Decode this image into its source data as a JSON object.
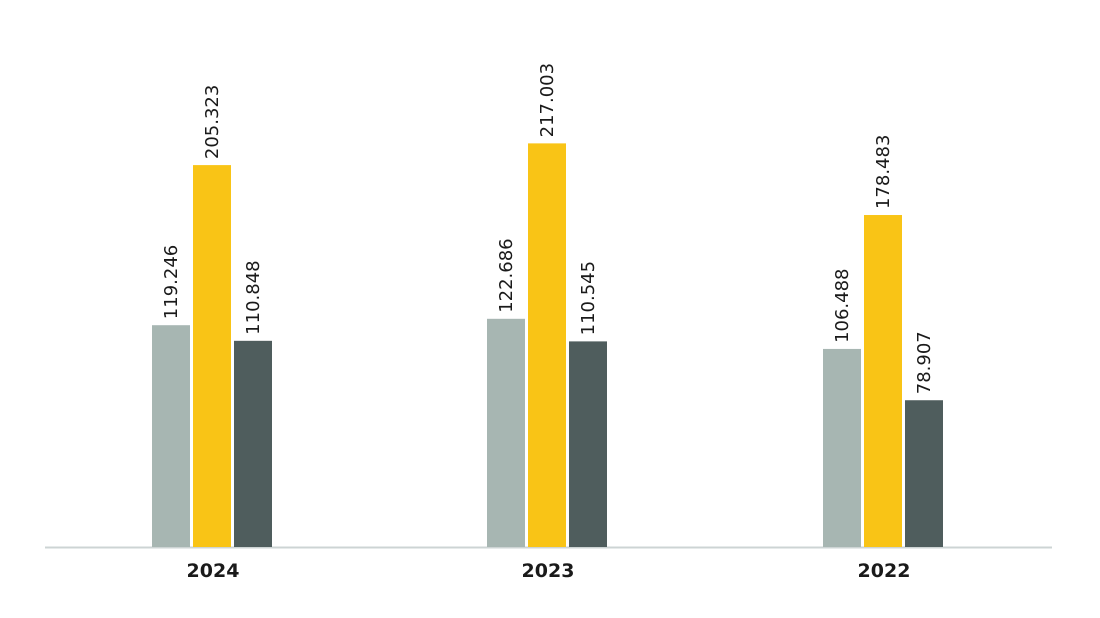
{
  "chart_data": {
    "type": "bar",
    "categories": [
      "2024",
      "2023",
      "2022"
    ],
    "series": [
      {
        "color": "#a7b6b2",
        "values": [
          119.246,
          122.686,
          106.488
        ]
      },
      {
        "color": "#f9c416",
        "values": [
          205.323,
          217.003,
          178.483
        ]
      },
      {
        "color": "#4f5d5d",
        "values": [
          110.848,
          110.545,
          78.907
        ]
      }
    ],
    "ylim": [
      0,
      250
    ]
  }
}
